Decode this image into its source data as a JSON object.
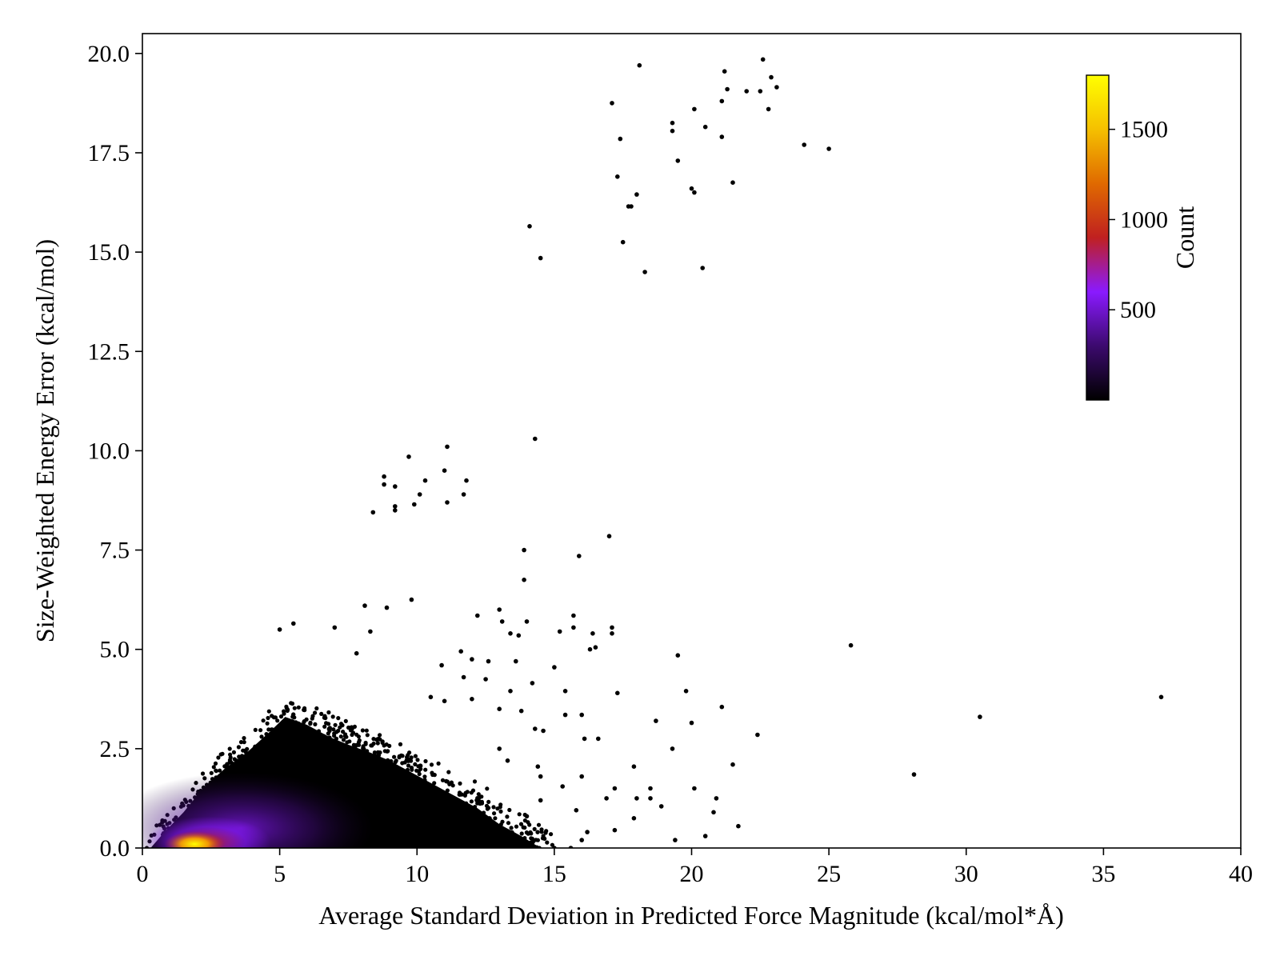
{
  "chart_data": {
    "type": "scatter",
    "subtype": "density-scatter",
    "title": "",
    "xlabel": "Average Standard Deviation in Predicted Force Magnitude (kcal/mol*Å)",
    "ylabel": "Size-Weighted Energy Error (kcal/mol)",
    "xlim": [
      0,
      40
    ],
    "ylim": [
      0,
      20.5
    ],
    "x_ticks": [
      0,
      5,
      10,
      15,
      20,
      25,
      30,
      35,
      40
    ],
    "x_tick_labels": [
      "0",
      "5",
      "10",
      "15",
      "20",
      "25",
      "30",
      "35",
      "40"
    ],
    "y_ticks": [
      0,
      2.5,
      5,
      7.5,
      10,
      12.5,
      15,
      17.5,
      20
    ],
    "y_tick_labels": [
      "0.0",
      "2.5",
      "5.0",
      "7.5",
      "10.0",
      "12.5",
      "15.0",
      "17.5",
      "20.0"
    ],
    "grid": false,
    "colorbar": {
      "label": "Count",
      "colormap": "gnuplot",
      "range": [
        0,
        1800
      ],
      "ticks": [
        500,
        1000,
        1500
      ],
      "tick_labels": [
        "500",
        "1000",
        "1500"
      ],
      "placement": "inside-top-right",
      "stops": [
        "#000000",
        "#3c0a6e",
        "#8a1aff",
        "#c02020",
        "#e06a00",
        "#f5c000",
        "#ffff00"
      ]
    },
    "dense_region": {
      "x_range": [
        0.3,
        14.5
      ],
      "y_range": [
        0,
        3.3
      ],
      "peak": {
        "x": 1.9,
        "y": 0.1,
        "count": 1750
      }
    },
    "points": [
      [
        22.6,
        19.85
      ],
      [
        18.1,
        19.7
      ],
      [
        21.2,
        19.55
      ],
      [
        22.9,
        19.4
      ],
      [
        21.3,
        19.1
      ],
      [
        22.0,
        19.05
      ],
      [
        22.5,
        19.05
      ],
      [
        23.1,
        19.15
      ],
      [
        17.1,
        18.75
      ],
      [
        21.1,
        18.8
      ],
      [
        20.1,
        18.6
      ],
      [
        22.8,
        18.6
      ],
      [
        19.3,
        18.25
      ],
      [
        19.3,
        18.05
      ],
      [
        20.5,
        18.15
      ],
      [
        17.4,
        17.85
      ],
      [
        21.1,
        17.9
      ],
      [
        24.1,
        17.7
      ],
      [
        25.0,
        17.6
      ],
      [
        19.5,
        17.3
      ],
      [
        17.3,
        16.9
      ],
      [
        21.5,
        16.75
      ],
      [
        20.0,
        16.6
      ],
      [
        20.1,
        16.5
      ],
      [
        18.0,
        16.45
      ],
      [
        17.7,
        16.15
      ],
      [
        17.8,
        16.15
      ],
      [
        14.1,
        15.65
      ],
      [
        17.5,
        15.25
      ],
      [
        14.5,
        14.85
      ],
      [
        20.4,
        14.6
      ],
      [
        18.3,
        14.5
      ],
      [
        14.3,
        10.3
      ],
      [
        11.1,
        10.1
      ],
      [
        9.7,
        9.85
      ],
      [
        11.0,
        9.5
      ],
      [
        8.8,
        9.35
      ],
      [
        10.3,
        9.25
      ],
      [
        11.8,
        9.25
      ],
      [
        8.8,
        9.15
      ],
      [
        9.2,
        9.1
      ],
      [
        10.1,
        8.9
      ],
      [
        11.7,
        8.9
      ],
      [
        11.1,
        8.7
      ],
      [
        9.2,
        8.6
      ],
      [
        9.9,
        8.65
      ],
      [
        9.2,
        8.5
      ],
      [
        8.4,
        8.45
      ],
      [
        17.0,
        7.85
      ],
      [
        13.9,
        7.5
      ],
      [
        15.9,
        7.35
      ],
      [
        13.9,
        6.75
      ],
      [
        9.8,
        6.25
      ],
      [
        8.1,
        6.1
      ],
      [
        8.9,
        6.05
      ],
      [
        13.0,
        6.0
      ],
      [
        12.2,
        5.85
      ],
      [
        15.7,
        5.85
      ],
      [
        13.1,
        5.7
      ],
      [
        14.0,
        5.7
      ],
      [
        15.2,
        5.45
      ],
      [
        15.7,
        5.55
      ],
      [
        17.1,
        5.55
      ],
      [
        5.5,
        5.65
      ],
      [
        5.0,
        5.5
      ],
      [
        7.0,
        5.55
      ],
      [
        8.3,
        5.45
      ],
      [
        13.4,
        5.4
      ],
      [
        13.7,
        5.35
      ],
      [
        16.4,
        5.4
      ],
      [
        17.1,
        5.4
      ],
      [
        25.8,
        5.1
      ],
      [
        16.3,
        5.0
      ],
      [
        16.5,
        5.05
      ],
      [
        7.8,
        4.9
      ],
      [
        11.6,
        4.95
      ],
      [
        12.0,
        4.75
      ],
      [
        12.6,
        4.7
      ],
      [
        13.6,
        4.7
      ],
      [
        19.5,
        4.85
      ],
      [
        10.9,
        4.6
      ],
      [
        15.0,
        4.55
      ],
      [
        11.7,
        4.3
      ],
      [
        12.5,
        4.25
      ],
      [
        14.2,
        4.15
      ],
      [
        15.4,
        3.95
      ],
      [
        19.8,
        3.95
      ],
      [
        13.4,
        3.95
      ],
      [
        10.5,
        3.8
      ],
      [
        11.0,
        3.7
      ],
      [
        12.0,
        3.75
      ],
      [
        13.0,
        3.5
      ],
      [
        13.8,
        3.45
      ],
      [
        21.1,
        3.55
      ],
      [
        15.4,
        3.35
      ],
      [
        16.0,
        3.35
      ],
      [
        17.3,
        3.9
      ],
      [
        18.7,
        3.2
      ],
      [
        20.0,
        3.15
      ],
      [
        37.1,
        3.8
      ],
      [
        30.5,
        3.3
      ],
      [
        14.3,
        3.0
      ],
      [
        14.6,
        2.95
      ],
      [
        16.1,
        2.75
      ],
      [
        16.6,
        2.75
      ],
      [
        22.4,
        2.85
      ],
      [
        19.3,
        2.5
      ],
      [
        13.0,
        2.5
      ],
      [
        13.3,
        2.2
      ],
      [
        14.4,
        2.05
      ],
      [
        17.9,
        2.05
      ],
      [
        21.5,
        2.1
      ],
      [
        14.5,
        1.8
      ],
      [
        16.0,
        1.8
      ],
      [
        28.1,
        1.85
      ],
      [
        15.3,
        1.55
      ],
      [
        17.2,
        1.5
      ],
      [
        18.5,
        1.5
      ],
      [
        20.1,
        1.5
      ],
      [
        16.9,
        1.25
      ],
      [
        18.0,
        1.25
      ],
      [
        18.5,
        1.25
      ],
      [
        20.9,
        1.25
      ],
      [
        14.5,
        1.2
      ],
      [
        15.8,
        0.95
      ],
      [
        18.9,
        1.05
      ],
      [
        20.8,
        0.9
      ],
      [
        17.9,
        0.75
      ],
      [
        14.0,
        0.8
      ],
      [
        21.7,
        0.55
      ],
      [
        17.2,
        0.45
      ],
      [
        16.2,
        0.4
      ],
      [
        16.0,
        0.2
      ],
      [
        20.5,
        0.3
      ],
      [
        19.4,
        0.2
      ],
      [
        14.2,
        0.0
      ],
      [
        15.0,
        0.0
      ],
      [
        15.6,
        0.0
      ]
    ]
  }
}
